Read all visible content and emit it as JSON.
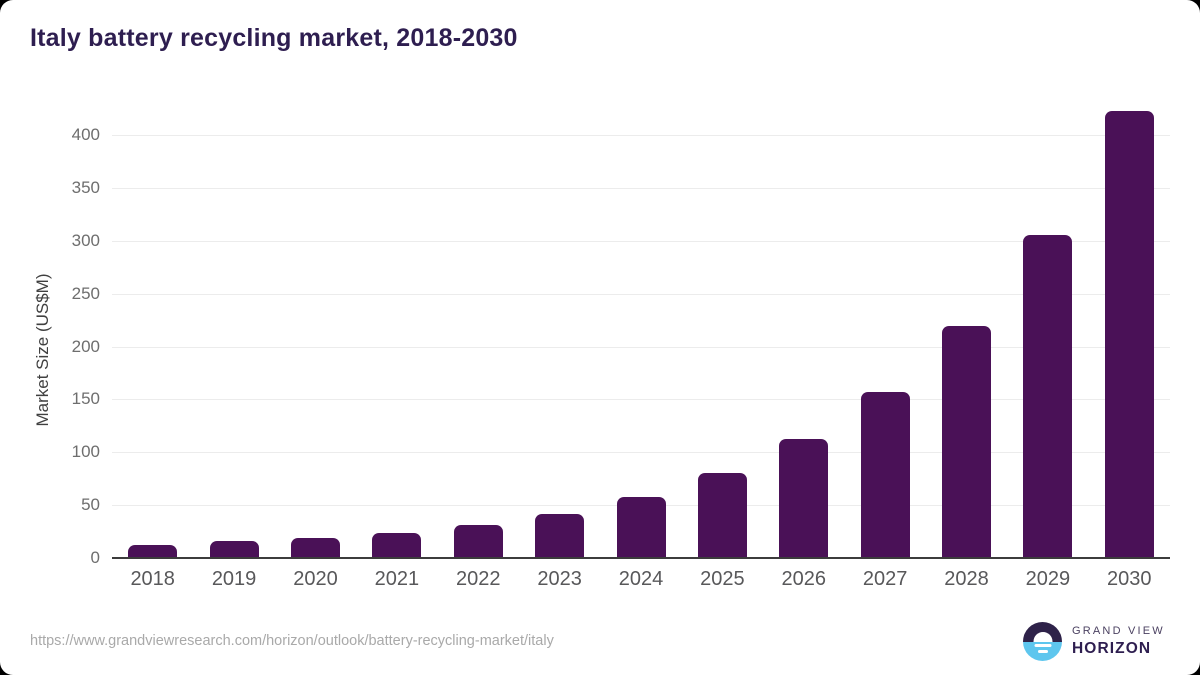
{
  "title": "Italy battery recycling market, 2018-2030",
  "chart_data": {
    "type": "bar",
    "title": "Italy battery recycling market, 2018-2030",
    "categories": [
      "2018",
      "2019",
      "2020",
      "2021",
      "2022",
      "2023",
      "2024",
      "2025",
      "2026",
      "2027",
      "2028",
      "2029",
      "2030"
    ],
    "values": [
      12,
      16,
      19,
      24,
      31,
      42,
      58,
      80,
      113,
      157,
      219,
      305,
      423
    ],
    "xlabel": "",
    "ylabel": "Market Size (US$M)",
    "ylim": [
      0,
      440
    ],
    "yticks": [
      0,
      50,
      100,
      150,
      200,
      250,
      300,
      350,
      400
    ],
    "grid": true,
    "legend": false,
    "bar_color": "#4a1157"
  },
  "footer": {
    "source_url": "https://www.grandviewresearch.com/horizon/outlook/battery-recycling-market/italy",
    "brand_top": "GRAND VIEW",
    "brand_bottom": "HORIZON"
  },
  "colors": {
    "bar": "#4a1157",
    "title_text": "#2e1e50",
    "axis_line": "#3c3c3c",
    "gridline": "#ececec",
    "ytick_text": "#6e6e6e",
    "xtick_text": "#58585a",
    "url_text": "#a9a9a9",
    "logo_dark": "#2e2249",
    "logo_blue": "#5ec6ee"
  }
}
